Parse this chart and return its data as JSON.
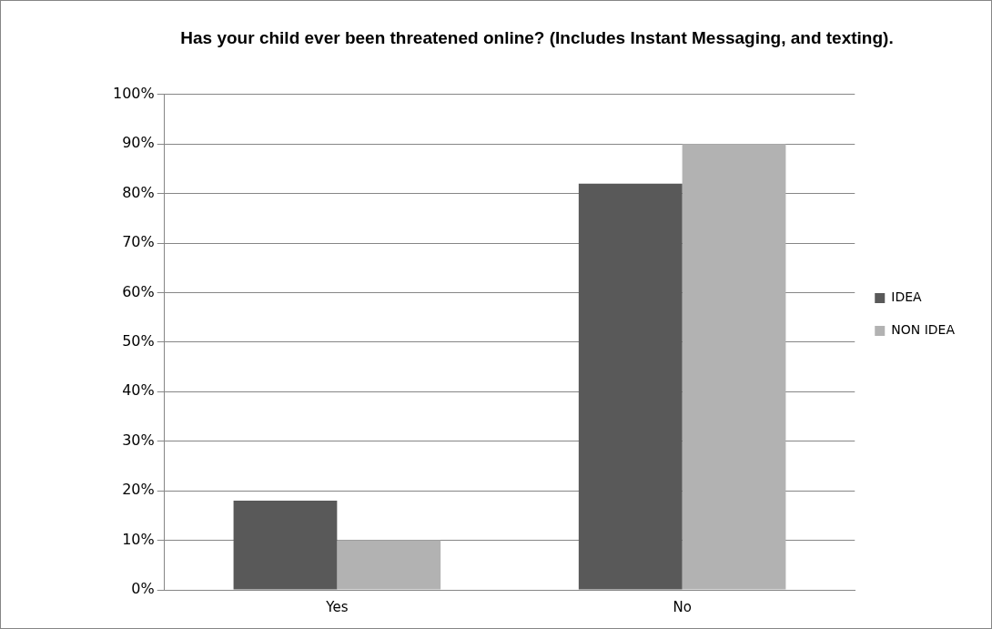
{
  "chart_data": {
    "type": "bar",
    "title": "Has your child ever been threatened online? (Includes Instant Messaging, and texting).",
    "categories": [
      "Yes",
      "No"
    ],
    "series": [
      {
        "name": "IDEA",
        "color": "#595959",
        "values": [
          18,
          82
        ]
      },
      {
        "name": "NON IDEA",
        "color": "#b2b2b2",
        "values": [
          10,
          90
        ]
      }
    ],
    "ylim": [
      0,
      100
    ],
    "yticks": [
      {
        "value": 0,
        "label": "0%"
      },
      {
        "value": 10,
        "label": "10%"
      },
      {
        "value": 20,
        "label": "20%"
      },
      {
        "value": 30,
        "label": "30%"
      },
      {
        "value": 40,
        "label": "40%"
      },
      {
        "value": 50,
        "label": "50%"
      },
      {
        "value": 60,
        "label": "60%"
      },
      {
        "value": 70,
        "label": "70%"
      },
      {
        "value": 80,
        "label": "80%"
      },
      {
        "value": 90,
        "label": "90%"
      },
      {
        "value": 100,
        "label": "100%"
      }
    ],
    "grid": "y",
    "legend": "right"
  }
}
